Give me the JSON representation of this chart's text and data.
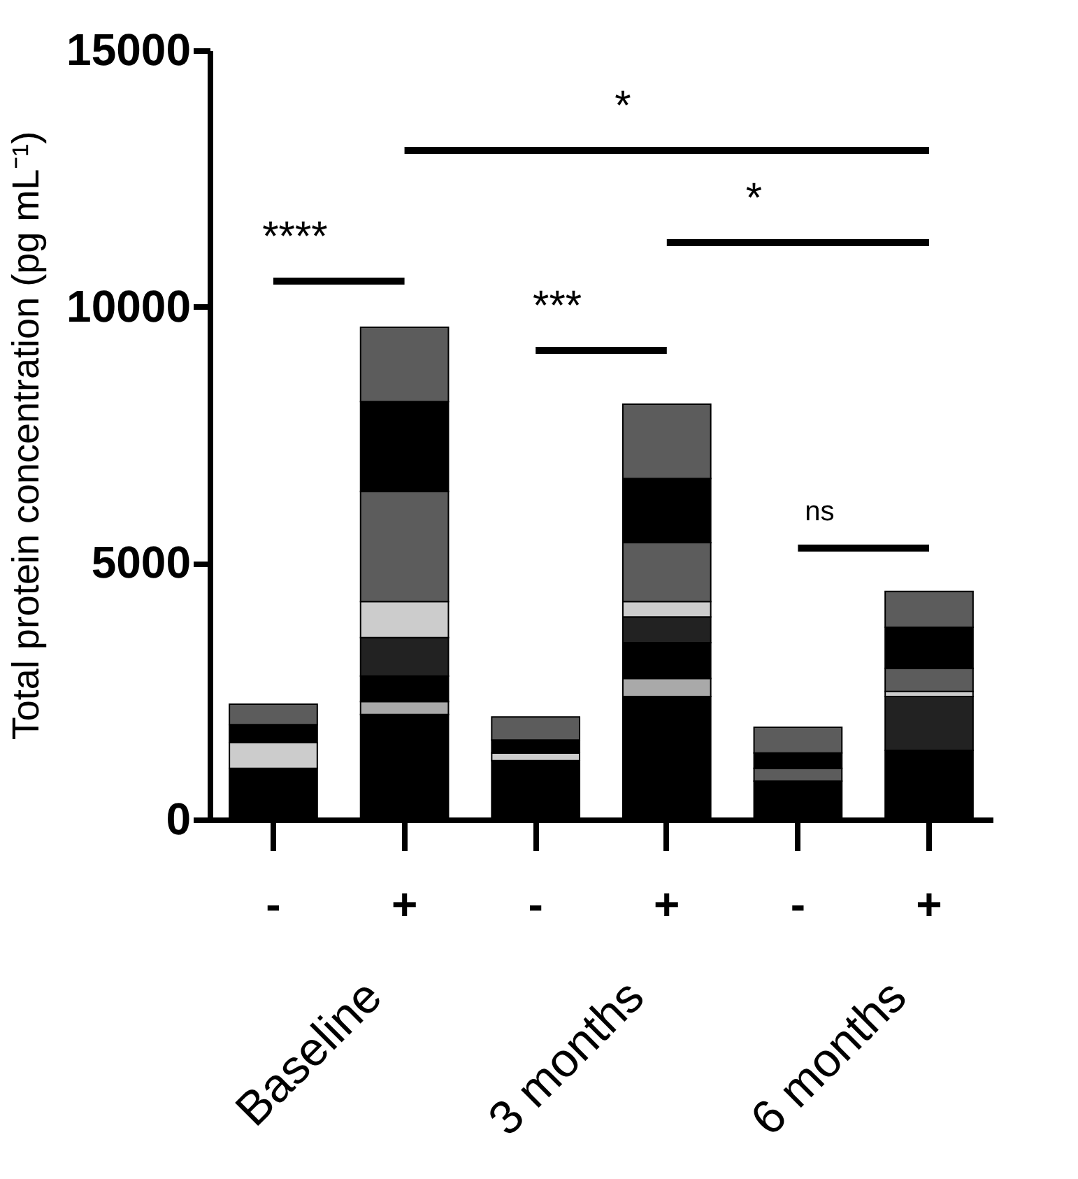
{
  "chart_data": {
    "type": "bar",
    "stacked": true,
    "relative": false,
    "ylabel": "Total protein concentration (pg mL⁻¹)",
    "categories": [
      "-",
      "+",
      "-",
      "+",
      "-",
      "+"
    ],
    "ylim": [
      0,
      15000
    ],
    "yticks": [
      0,
      5000,
      10000,
      15000
    ],
    "grid": false,
    "legend": false,
    "series": [
      {
        "color": "#000000",
        "values": [
          1000,
          2050,
          1150,
          2400,
          750,
          1350
        ]
      },
      {
        "color": "#a9a9a9",
        "values": [
          0,
          250,
          0,
          350,
          0,
          0
        ]
      },
      {
        "color": "#000000",
        "values": [
          0,
          500,
          0,
          700,
          0,
          0
        ]
      },
      {
        "color": "#222222",
        "values": [
          0,
          750,
          0,
          500,
          0,
          1050
        ]
      },
      {
        "color": "#cccccc",
        "values": [
          500,
          700,
          150,
          300,
          0,
          100
        ]
      },
      {
        "color": "#5c5c5c",
        "values": [
          0,
          2150,
          0,
          1150,
          250,
          450
        ]
      },
      {
        "color": "#000000",
        "values": [
          350,
          1750,
          250,
          1250,
          300,
          800
        ]
      },
      {
        "color": "#5c5c5c",
        "values": [
          400,
          1450,
          450,
          1450,
          500,
          700
        ]
      }
    ],
    "annotations": [
      "*",
      "****",
      "*",
      "***",
      "ns",
      "Baseline",
      "3 months",
      "6 months"
    ]
  }
}
